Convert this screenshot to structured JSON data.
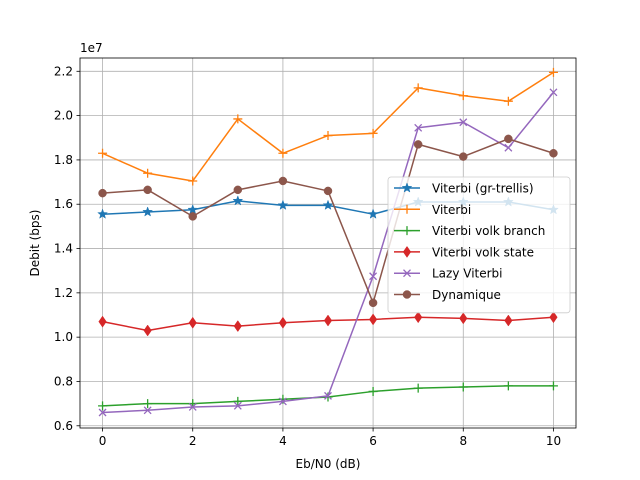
{
  "chart_data": {
    "type": "line",
    "title": "",
    "xlabel": "Eb/N0 (dB)",
    "ylabel": "Debit (bps)",
    "y_offset_label": "1e7",
    "y_scale": 10000000,
    "xlim": [
      -0.5,
      10.5
    ],
    "ylim": [
      5900000,
      22600000
    ],
    "xticks": [
      0,
      2,
      4,
      6,
      8,
      10
    ],
    "yticks": [
      6000000,
      8000000,
      10000000,
      12000000,
      14000000,
      16000000,
      18000000,
      20000000,
      22000000
    ],
    "ytick_labels": [
      "0.6",
      "0.8",
      "1.0",
      "1.2",
      "1.4",
      "1.6",
      "1.8",
      "2.0",
      "2.2"
    ],
    "grid": true,
    "legend_position": "center-right",
    "x": [
      0,
      1,
      2,
      3,
      4,
      5,
      6,
      7,
      8,
      9,
      10
    ],
    "series": [
      {
        "name": "Viterbi (gr-trellis)",
        "color": "#1f77b4",
        "marker": "star",
        "values": [
          15550000,
          15650000,
          15750000,
          16150000,
          15950000,
          15950000,
          15550000,
          16100000,
          16100000,
          16100000,
          15750000
        ]
      },
      {
        "name": "Viterbi",
        "color": "#ff7f0e",
        "marker": "plus",
        "values": [
          18300000,
          17400000,
          17050000,
          19850000,
          18300000,
          19100000,
          19200000,
          21250000,
          20900000,
          20650000,
          21950000
        ]
      },
      {
        "name": "Viterbi volk branch",
        "color": "#2ca02c",
        "marker": "plus",
        "values": [
          6900000,
          7000000,
          7000000,
          7100000,
          7200000,
          7300000,
          7550000,
          7700000,
          7750000,
          7800000,
          7800000
        ]
      },
      {
        "name": "Viterbi volk state",
        "color": "#d62728",
        "marker": "diamond",
        "values": [
          10700000,
          10300000,
          10650000,
          10500000,
          10650000,
          10750000,
          10800000,
          10900000,
          10850000,
          10750000,
          10900000
        ]
      },
      {
        "name": "Lazy Viterbi",
        "color": "#9467bd",
        "marker": "x",
        "values": [
          6600000,
          6700000,
          6850000,
          6900000,
          7100000,
          7350000,
          12750000,
          19450000,
          19700000,
          18550000,
          21050000
        ]
      },
      {
        "name": "Dynamique",
        "color": "#8c564b",
        "marker": "circle",
        "values": [
          16500000,
          16650000,
          15450000,
          16650000,
          17050000,
          16600000,
          11550000,
          18700000,
          18150000,
          18950000,
          18300000
        ]
      }
    ]
  }
}
